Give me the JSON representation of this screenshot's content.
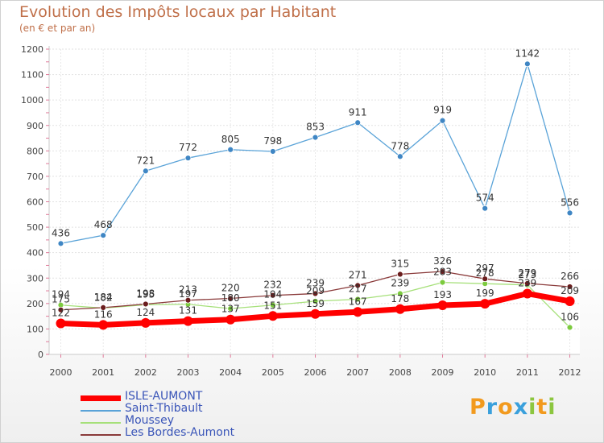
{
  "chart_data": {
    "type": "line",
    "title": "Evolution des Impôts locaux par Habitant",
    "subtitle": "(en € et par an)",
    "x": [
      "2000",
      "2001",
      "2002",
      "2003",
      "2004",
      "2005",
      "2006",
      "2007",
      "2008",
      "2009",
      "2010",
      "2011",
      "2012"
    ],
    "ylim": [
      0,
      1200
    ],
    "yticks": [
      0,
      100,
      200,
      300,
      400,
      500,
      600,
      700,
      800,
      900,
      1000,
      1100,
      1200
    ],
    "grid": true,
    "series": [
      {
        "name": "Saint-Thibault",
        "color": "#5aa3d8",
        "marker": "#3f86c4",
        "width": 1.3,
        "values": [
          436,
          468,
          721,
          772,
          805,
          798,
          853,
          911,
          778,
          919,
          574,
          1142,
          556
        ]
      },
      {
        "name": "Moussey",
        "color": "#a6e07a",
        "marker": "#7ccb3e",
        "width": 1.3,
        "values": [
          194,
          182,
          195,
          197,
          180,
          194,
          209,
          217,
          239,
          283,
          278,
          273,
          106
        ]
      },
      {
        "name": "Les Bordes-Aumont",
        "color": "#8a3a3a",
        "marker": "#6b1e1e",
        "width": 1.3,
        "values": [
          175,
          184,
          198,
          213,
          220,
          232,
          239,
          271,
          315,
          326,
          297,
          279,
          266
        ]
      },
      {
        "name": "ISLE-AUMONT",
        "color": "#ff0000",
        "marker": "#ff0000",
        "width": 7,
        "values": [
          122,
          116,
          124,
          131,
          137,
          151,
          159,
          167,
          178,
          193,
          199,
          239,
          209
        ]
      }
    ],
    "legend_order": [
      "ISLE-AUMONT",
      "Saint-Thibault",
      "Moussey",
      "Les Bordes-Aumont"
    ]
  },
  "logo": {
    "text": "Proxiti",
    "letters": [
      "P",
      "r",
      "o",
      "x",
      "i",
      "t",
      "i"
    ],
    "colors": [
      "#f29a1e",
      "#3aa0dc",
      "#f29a1e",
      "#3aa0dc",
      "#8cc63f",
      "#f29a1e",
      "#8cc63f"
    ]
  }
}
